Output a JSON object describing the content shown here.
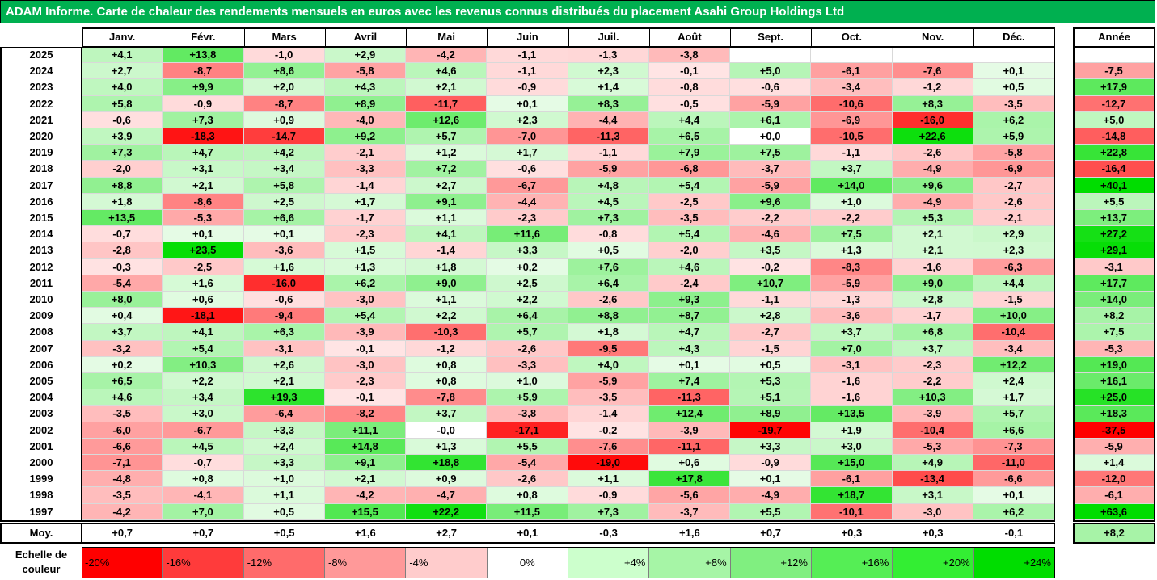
{
  "title": "ADAM Informe. Carte de chaleur des rendements mensuels en euros avec les revenus connus distribués du placement Asahi Group Holdings Ltd",
  "chart_data": {
    "type": "heatmap",
    "months": [
      "Janv.",
      "Févr.",
      "Mars",
      "Avril",
      "Mai",
      "Juin",
      "Juil.",
      "Août",
      "Sept.",
      "Oct.",
      "Nov.",
      "Déc."
    ],
    "year_header": "Année",
    "avg_label": "Moy.",
    "rows": [
      {
        "year": "2025",
        "values": [
          "+4,1",
          "+13,8",
          "-1,0",
          "+2,9",
          "-4,2",
          "-1,1",
          "-1,3",
          "-3,8",
          "",
          "",
          "",
          ""
        ],
        "annual": ""
      },
      {
        "year": "2024",
        "values": [
          "+2,7",
          "-8,7",
          "+8,6",
          "-5,8",
          "+4,6",
          "-1,1",
          "+2,3",
          "-0,1",
          "+5,0",
          "-6,1",
          "-7,6",
          "+0,1"
        ],
        "annual": "-7,5"
      },
      {
        "year": "2023",
        "values": [
          "+4,0",
          "+9,9",
          "+2,0",
          "+4,3",
          "+2,1",
          "-0,9",
          "+1,4",
          "-0,8",
          "-0,6",
          "-3,4",
          "-1,2",
          "+0,5"
        ],
        "annual": "+17,9"
      },
      {
        "year": "2022",
        "values": [
          "+5,8",
          "-0,9",
          "-8,7",
          "+8,9",
          "-11,7",
          "+0,1",
          "+8,3",
          "-0,5",
          "-5,9",
          "-10,6",
          "+8,3",
          "-3,5"
        ],
        "annual": "-12,7"
      },
      {
        "year": "2021",
        "values": [
          "-0,6",
          "+7,3",
          "+0,9",
          "-4,0",
          "+12,6",
          "+2,3",
          "-4,4",
          "+4,4",
          "+6,1",
          "-6,9",
          "-16,0",
          "+6,2"
        ],
        "annual": "+5,0"
      },
      {
        "year": "2020",
        "values": [
          "+3,9",
          "-18,3",
          "-14,7",
          "+9,2",
          "+5,7",
          "-7,0",
          "-11,3",
          "+6,5",
          "+0,0",
          "-10,5",
          "+22,6",
          "+5,9"
        ],
        "annual": "-14,8"
      },
      {
        "year": "2019",
        "values": [
          "+7,3",
          "+4,7",
          "+4,2",
          "-2,1",
          "+1,2",
          "+1,7",
          "-1,1",
          "+7,9",
          "+7,5",
          "-1,1",
          "-2,6",
          "-5,8"
        ],
        "annual": "+22,8"
      },
      {
        "year": "2018",
        "values": [
          "-2,0",
          "+3,1",
          "+3,4",
          "-3,3",
          "+7,2",
          "-0,6",
          "-5,9",
          "-6,8",
          "-3,7",
          "+3,7",
          "-4,9",
          "-6,9"
        ],
        "annual": "-16,4"
      },
      {
        "year": "2017",
        "values": [
          "+8,8",
          "+2,1",
          "+5,8",
          "-1,4",
          "+2,7",
          "-6,7",
          "+4,8",
          "+5,4",
          "-5,9",
          "+14,0",
          "+9,6",
          "-2,7"
        ],
        "annual": "+40,1"
      },
      {
        "year": "2016",
        "values": [
          "+1,8",
          "-8,6",
          "+2,5",
          "+1,7",
          "+9,1",
          "-4,4",
          "+4,5",
          "-2,5",
          "+9,6",
          "+1,0",
          "-4,9",
          "-2,6"
        ],
        "annual": "+5,5"
      },
      {
        "year": "2015",
        "values": [
          "+13,5",
          "-5,3",
          "+6,6",
          "-1,7",
          "+1,1",
          "-2,3",
          "+7,3",
          "-3,5",
          "-2,2",
          "-2,2",
          "+5,3",
          "-2,1"
        ],
        "annual": "+13,7"
      },
      {
        "year": "2014",
        "values": [
          "-0,7",
          "+0,1",
          "+0,1",
          "-2,3",
          "+4,1",
          "+11,6",
          "-0,8",
          "+5,4",
          "-4,6",
          "+7,5",
          "+2,1",
          "+2,9"
        ],
        "annual": "+27,2"
      },
      {
        "year": "2013",
        "values": [
          "-2,8",
          "+23,5",
          "-3,6",
          "+1,5",
          "-1,4",
          "+3,3",
          "+0,5",
          "-2,0",
          "+3,5",
          "+1,3",
          "+2,1",
          "+2,3"
        ],
        "annual": "+29,1"
      },
      {
        "year": "2012",
        "values": [
          "-0,3",
          "-2,5",
          "+1,6",
          "+1,3",
          "+1,8",
          "+0,2",
          "+7,6",
          "+4,6",
          "-0,2",
          "-8,3",
          "-1,6",
          "-6,3"
        ],
        "annual": "-3,1"
      },
      {
        "year": "2011",
        "values": [
          "-5,4",
          "+1,6",
          "-16,0",
          "+6,2",
          "+9,0",
          "+2,5",
          "+6,4",
          "-2,4",
          "+10,7",
          "-5,9",
          "+9,0",
          "+4,4"
        ],
        "annual": "+17,7"
      },
      {
        "year": "2010",
        "values": [
          "+8,0",
          "+0,6",
          "-0,6",
          "-3,0",
          "+1,1",
          "+2,2",
          "-2,6",
          "+9,3",
          "-1,1",
          "-1,3",
          "+2,8",
          "-1,5"
        ],
        "annual": "+14,0"
      },
      {
        "year": "2009",
        "values": [
          "+0,4",
          "-18,1",
          "-9,4",
          "+5,4",
          "+2,2",
          "+6,4",
          "+8,8",
          "+8,7",
          "+2,8",
          "-3,6",
          "-1,7",
          "+10,0"
        ],
        "annual": "+8,2"
      },
      {
        "year": "2008",
        "values": [
          "+3,7",
          "+4,1",
          "+6,3",
          "-3,9",
          "-10,3",
          "+5,7",
          "+1,8",
          "+4,7",
          "-2,7",
          "+3,7",
          "+6,8",
          "-10,4"
        ],
        "annual": "+7,5"
      },
      {
        "year": "2007",
        "values": [
          "-3,2",
          "+5,4",
          "-3,1",
          "-0,1",
          "-1,2",
          "-2,6",
          "-9,5",
          "+4,3",
          "-1,5",
          "+7,0",
          "+3,7",
          "-3,4"
        ],
        "annual": "-5,3"
      },
      {
        "year": "2006",
        "values": [
          "+0,2",
          "+10,3",
          "+2,6",
          "-3,0",
          "+0,8",
          "-3,3",
          "+4,0",
          "+0,1",
          "+0,5",
          "-3,1",
          "-2,3",
          "+12,2"
        ],
        "annual": "+19,0"
      },
      {
        "year": "2005",
        "values": [
          "+6,5",
          "+2,2",
          "+2,1",
          "-2,3",
          "+0,8",
          "+1,0",
          "-5,9",
          "+7,4",
          "+5,3",
          "-1,6",
          "-2,2",
          "+2,4"
        ],
        "annual": "+16,1"
      },
      {
        "year": "2004",
        "values": [
          "+4,6",
          "+3,4",
          "+19,3",
          "-0,1",
          "-7,8",
          "+5,9",
          "-3,5",
          "-11,3",
          "+5,1",
          "-1,6",
          "+10,3",
          "+1,7"
        ],
        "annual": "+25,0"
      },
      {
        "year": "2003",
        "values": [
          "-3,5",
          "+3,0",
          "-6,4",
          "-8,2",
          "+3,7",
          "-3,8",
          "-1,4",
          "+12,4",
          "+8,9",
          "+13,5",
          "-3,9",
          "+5,7"
        ],
        "annual": "+18,3"
      },
      {
        "year": "2002",
        "values": [
          "-6,0",
          "-6,7",
          "+3,3",
          "+11,1",
          "-0,0",
          "-17,1",
          "-0,2",
          "-3,9",
          "-19,7",
          "+1,9",
          "-10,4",
          "+6,6"
        ],
        "annual": "-37,5"
      },
      {
        "year": "2001",
        "values": [
          "-6,6",
          "+4,5",
          "+2,4",
          "+14,8",
          "+1,3",
          "+5,5",
          "-7,6",
          "-11,1",
          "+3,3",
          "+3,0",
          "-5,3",
          "-7,3"
        ],
        "annual": "-5,9"
      },
      {
        "year": "2000",
        "values": [
          "-7,1",
          "-0,7",
          "+3,3",
          "+9,1",
          "+18,8",
          "-5,4",
          "-19,0",
          "+0,6",
          "-0,9",
          "+15,0",
          "+4,9",
          "-11,0"
        ],
        "annual": "+1,4"
      },
      {
        "year": "1999",
        "values": [
          "-4,8",
          "+0,8",
          "+1,0",
          "+2,1",
          "+0,9",
          "-2,6",
          "+1,1",
          "+17,8",
          "+0,1",
          "-6,1",
          "-13,4",
          "-6,6"
        ],
        "annual": "-12,0"
      },
      {
        "year": "1998",
        "values": [
          "-3,5",
          "-4,1",
          "+1,1",
          "-4,2",
          "-4,7",
          "+0,8",
          "-0,9",
          "-5,6",
          "-4,9",
          "+18,7",
          "+3,1",
          "+0,1"
        ],
        "annual": "-6,1"
      },
      {
        "year": "1997",
        "values": [
          "-4,2",
          "+7,0",
          "+0,5",
          "+15,5",
          "+22,2",
          "+11,5",
          "+7,3",
          "-3,7",
          "+5,5",
          "-10,1",
          "-3,0",
          "+6,2"
        ],
        "annual": "+63,6"
      }
    ],
    "averages": [
      "+0,7",
      "+0,7",
      "+0,5",
      "+1,6",
      "+2,7",
      "+0,1",
      "-0,3",
      "+1,6",
      "+0,7",
      "+0,3",
      "+0,3",
      "-0,1"
    ],
    "annual_average": "+8,2",
    "scale_label": "Echelle de couleur",
    "scale": [
      {
        "label": "-20%",
        "value": -20,
        "color": "#ff0000"
      },
      {
        "label": "-16%",
        "value": -16,
        "color": "#ff3b3b"
      },
      {
        "label": "-12%",
        "value": -12,
        "color": "#ff6b6b"
      },
      {
        "label": "-8%",
        "value": -8,
        "color": "#ff9999"
      },
      {
        "label": "-4%",
        "value": -4,
        "color": "#ffcccc"
      },
      {
        "label": "0%",
        "value": 0,
        "color": "#ffffff"
      },
      {
        "label": "+4%",
        "value": 4,
        "color": "#ccffcc"
      },
      {
        "label": "+8%",
        "value": 8,
        "color": "#a6f5a6"
      },
      {
        "label": "+12%",
        "value": 12,
        "color": "#80ef80"
      },
      {
        "label": "+16%",
        "value": 16,
        "color": "#55ee55"
      },
      {
        "label": "+20%",
        "value": 20,
        "color": "#33ee33"
      },
      {
        "label": "+24%",
        "value": 24,
        "color": "#00dd00"
      }
    ],
    "colors": {
      "title_bg": "#00b050",
      "title_text": "#ffffff",
      "negative_max": "#ff0000",
      "positive_max": "#00dd00"
    }
  }
}
